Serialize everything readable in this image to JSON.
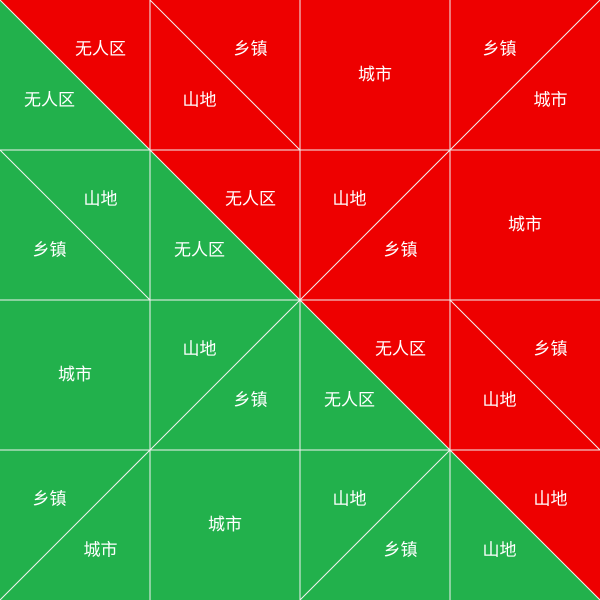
{
  "colors": {
    "green": "#22b14c",
    "red": "#ee0000",
    "line": "#f2f2f2",
    "text": "#ffffff"
  },
  "diagram": {
    "cells": [
      {
        "row": 0,
        "col": 0,
        "split": "main",
        "regions": [
          {
            "part": "upper",
            "color": "red",
            "label": "无人区"
          },
          {
            "part": "lower",
            "color": "green",
            "label": "无人区"
          }
        ]
      },
      {
        "row": 0,
        "col": 1,
        "split": "main",
        "regions": [
          {
            "part": "upper",
            "color": "red",
            "label": "乡镇"
          },
          {
            "part": "lower",
            "color": "red",
            "label": "山地"
          }
        ]
      },
      {
        "row": 0,
        "col": 2,
        "split": "none",
        "regions": [
          {
            "part": "whole",
            "color": "red",
            "label": "城市"
          }
        ]
      },
      {
        "row": 0,
        "col": 3,
        "split": "anti",
        "regions": [
          {
            "part": "upper",
            "color": "red",
            "label": "乡镇"
          },
          {
            "part": "lower",
            "color": "red",
            "label": "城市"
          }
        ]
      },
      {
        "row": 1,
        "col": 0,
        "split": "main",
        "regions": [
          {
            "part": "upper",
            "color": "green",
            "label": "山地"
          },
          {
            "part": "lower",
            "color": "green",
            "label": "乡镇"
          }
        ]
      },
      {
        "row": 1,
        "col": 1,
        "split": "main",
        "regions": [
          {
            "part": "upper",
            "color": "red",
            "label": "无人区"
          },
          {
            "part": "lower",
            "color": "green",
            "label": "无人区"
          }
        ]
      },
      {
        "row": 1,
        "col": 2,
        "split": "anti",
        "regions": [
          {
            "part": "upper",
            "color": "red",
            "label": "山地"
          },
          {
            "part": "lower",
            "color": "red",
            "label": "乡镇"
          }
        ]
      },
      {
        "row": 1,
        "col": 3,
        "split": "none",
        "regions": [
          {
            "part": "whole",
            "color": "red",
            "label": "城市"
          }
        ]
      },
      {
        "row": 2,
        "col": 0,
        "split": "none",
        "regions": [
          {
            "part": "whole",
            "color": "green",
            "label": "城市"
          }
        ]
      },
      {
        "row": 2,
        "col": 1,
        "split": "anti",
        "regions": [
          {
            "part": "upper",
            "color": "green",
            "label": "山地"
          },
          {
            "part": "lower",
            "color": "green",
            "label": "乡镇"
          }
        ]
      },
      {
        "row": 2,
        "col": 2,
        "split": "main",
        "regions": [
          {
            "part": "upper",
            "color": "red",
            "label": "无人区"
          },
          {
            "part": "lower",
            "color": "green",
            "label": "无人区"
          }
        ]
      },
      {
        "row": 2,
        "col": 3,
        "split": "main",
        "regions": [
          {
            "part": "upper",
            "color": "red",
            "label": "乡镇"
          },
          {
            "part": "lower",
            "color": "red",
            "label": "山地"
          }
        ]
      },
      {
        "row": 3,
        "col": 0,
        "split": "anti",
        "regions": [
          {
            "part": "upper",
            "color": "green",
            "label": "乡镇"
          },
          {
            "part": "lower",
            "color": "green",
            "label": "城市"
          }
        ]
      },
      {
        "row": 3,
        "col": 1,
        "split": "none",
        "regions": [
          {
            "part": "whole",
            "color": "green",
            "label": "城市"
          }
        ]
      },
      {
        "row": 3,
        "col": 2,
        "split": "anti",
        "regions": [
          {
            "part": "upper",
            "color": "green",
            "label": "山地"
          },
          {
            "part": "lower",
            "color": "green",
            "label": "乡镇"
          }
        ]
      },
      {
        "row": 3,
        "col": 3,
        "split": "main",
        "regions": [
          {
            "part": "upper",
            "color": "red",
            "label": "山地"
          },
          {
            "part": "lower",
            "color": "green",
            "label": "山地"
          }
        ]
      }
    ]
  }
}
